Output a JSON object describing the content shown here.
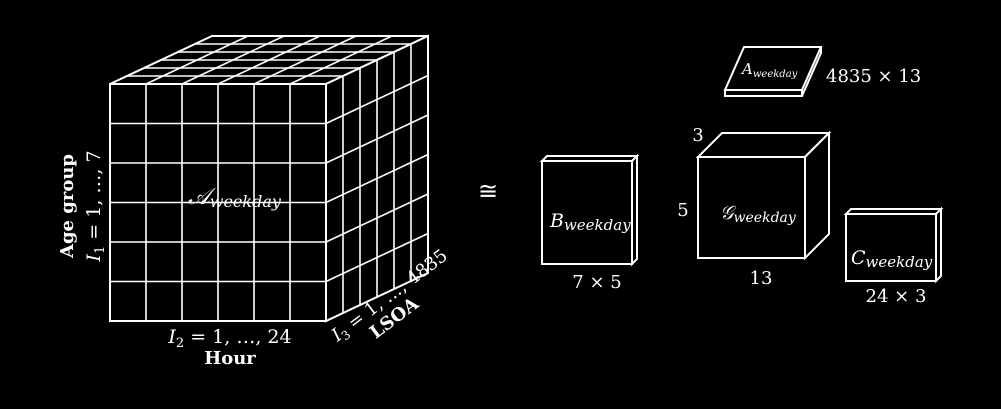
{
  "tensor": {
    "symbol": "𝒜",
    "subscript": "weekday",
    "age_axis": {
      "title": "Age group",
      "index_prefix": "I",
      "index_sub": "1",
      "range": " = 1, …, 7"
    },
    "hour_axis": {
      "title": "Hour",
      "index_prefix": "I",
      "index_sub": "2",
      "range": " = 1, …, 24"
    },
    "lsoa_axis": {
      "title": "LSOA",
      "index_prefix": "I",
      "index_sub": "3",
      "range": " = 1, …, 4835"
    }
  },
  "congruence_symbol": "≅",
  "factor_a": {
    "symbol": "A",
    "subscript": "weekday",
    "dims": "4835 × 13"
  },
  "factor_b": {
    "symbol": "B",
    "subscript": "weekday",
    "dims": "7 × 5"
  },
  "core": {
    "symbol": "𝒢",
    "subscript": "weekday",
    "depth_label": "3",
    "height_label": "5",
    "width_label": "13"
  },
  "factor_c": {
    "symbol": "C",
    "subscript": "weekday",
    "dims": "24 × 3"
  }
}
